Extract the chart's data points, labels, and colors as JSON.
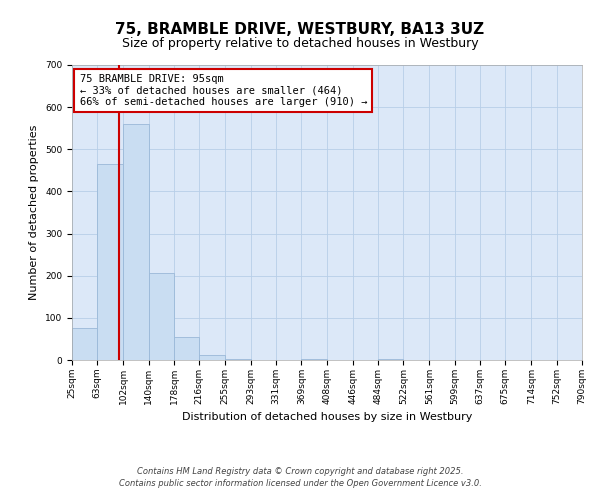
{
  "title": "75, BRAMBLE DRIVE, WESTBURY, BA13 3UZ",
  "subtitle": "Size of property relative to detached houses in Westbury",
  "xlabel": "Distribution of detached houses by size in Westbury",
  "ylabel": "Number of detached properties",
  "bin_edges": [
    25,
    63,
    102,
    140,
    178,
    216,
    255,
    293,
    331,
    369,
    408,
    446,
    484,
    522,
    561,
    599,
    637,
    675,
    714,
    752,
    790
  ],
  "bar_heights": [
    75,
    465,
    560,
    207,
    55,
    13,
    3,
    0,
    0,
    3,
    0,
    0,
    3,
    0,
    0,
    0,
    0,
    0,
    0,
    0
  ],
  "bar_color": "#c9ddf2",
  "bar_edge_color": "#9ab8d8",
  "grid_color": "#b8cee8",
  "background_color": "#dce8f8",
  "vline_x": 95,
  "vline_color": "#cc0000",
  "annotation_line1": "75 BRAMBLE DRIVE: 95sqm",
  "annotation_line2": "← 33% of detached houses are smaller (464)",
  "annotation_line3": "66% of semi-detached houses are larger (910) →",
  "annotation_box_color": "#cc0000",
  "ylim": [
    0,
    700
  ],
  "yticks": [
    0,
    100,
    200,
    300,
    400,
    500,
    600,
    700
  ],
  "tick_labels": [
    "25sqm",
    "63sqm",
    "102sqm",
    "140sqm",
    "178sqm",
    "216sqm",
    "255sqm",
    "293sqm",
    "331sqm",
    "369sqm",
    "408sqm",
    "446sqm",
    "484sqm",
    "522sqm",
    "561sqm",
    "599sqm",
    "637sqm",
    "675sqm",
    "714sqm",
    "752sqm",
    "790sqm"
  ],
  "footer_line1": "Contains HM Land Registry data © Crown copyright and database right 2025.",
  "footer_line2": "Contains public sector information licensed under the Open Government Licence v3.0.",
  "title_fontsize": 11,
  "subtitle_fontsize": 9,
  "axis_label_fontsize": 8,
  "tick_fontsize": 6.5,
  "annotation_fontsize": 7.5,
  "footer_fontsize": 6
}
